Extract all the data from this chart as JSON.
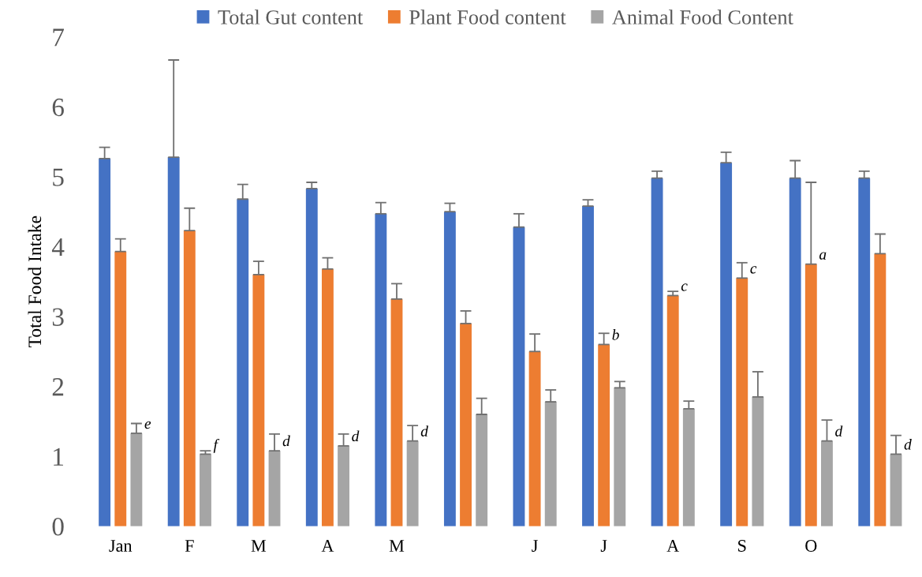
{
  "chart_data": {
    "type": "bar",
    "ylabel": "Total Food Intake",
    "categories": [
      "Jan",
      "F",
      "M",
      "A",
      "M",
      null,
      "J",
      "J",
      "A",
      "S",
      "O",
      null
    ],
    "series": [
      {
        "name": "Total Gut content",
        "color": "#4472c4",
        "values": [
          5.26,
          5.28,
          4.68,
          4.83,
          4.47,
          4.5,
          4.28,
          4.58,
          4.98,
          5.2,
          4.98,
          4.98
        ],
        "errors": [
          [
            5.26,
            5.42
          ],
          [
            5.28,
            6.67
          ],
          [
            4.68,
            4.89
          ],
          [
            4.83,
            4.92
          ],
          [
            4.47,
            4.63
          ],
          [
            4.5,
            4.62
          ],
          [
            4.28,
            4.47
          ],
          [
            4.58,
            4.67
          ],
          [
            4.98,
            5.08
          ],
          [
            5.2,
            5.35
          ],
          [
            4.98,
            5.23
          ],
          [
            4.98,
            5.08
          ]
        ]
      },
      {
        "name": "Plant Food content",
        "color": "#ed7d31",
        "values": [
          3.93,
          4.23,
          3.6,
          3.68,
          3.25,
          2.9,
          2.5,
          2.6,
          3.3,
          3.55,
          3.75,
          3.9
        ],
        "errors": [
          [
            3.93,
            4.11
          ],
          [
            4.23,
            4.55
          ],
          [
            3.6,
            3.79
          ],
          [
            3.68,
            3.84
          ],
          [
            3.25,
            3.47
          ],
          [
            2.9,
            3.08
          ],
          [
            2.5,
            2.75
          ],
          [
            2.6,
            2.76
          ],
          [
            3.3,
            3.36
          ],
          [
            3.55,
            3.77
          ],
          [
            3.75,
            4.92
          ],
          [
            3.9,
            4.18
          ]
        ],
        "value_labels": [
          null,
          null,
          null,
          null,
          null,
          null,
          null,
          "b",
          "c",
          "c",
          "a",
          null
        ]
      },
      {
        "name": "Animal Food Content",
        "color": "#a5a5a5",
        "values": [
          1.33,
          1.03,
          1.08,
          1.15,
          1.22,
          1.6,
          1.78,
          1.98,
          1.68,
          1.85,
          1.22,
          1.03
        ],
        "errors": [
          [
            1.33,
            1.47
          ],
          [
            1.03,
            1.08
          ],
          [
            1.08,
            1.32
          ],
          [
            1.15,
            1.32
          ],
          [
            1.22,
            1.44
          ],
          [
            1.6,
            1.83
          ],
          [
            1.78,
            1.95
          ],
          [
            1.98,
            2.07
          ],
          [
            1.68,
            1.79
          ],
          [
            1.85,
            2.21
          ],
          [
            1.22,
            1.52
          ],
          [
            1.03,
            1.3
          ]
        ],
        "value_labels": [
          "e",
          "f",
          "d",
          "d",
          "d",
          null,
          null,
          null,
          null,
          null,
          "d",
          "d"
        ]
      }
    ],
    "ylim": [
      0,
      7
    ],
    "yticks": [
      0,
      1,
      2,
      3,
      4,
      5,
      6,
      7
    ],
    "grid": false,
    "legend": "top"
  }
}
